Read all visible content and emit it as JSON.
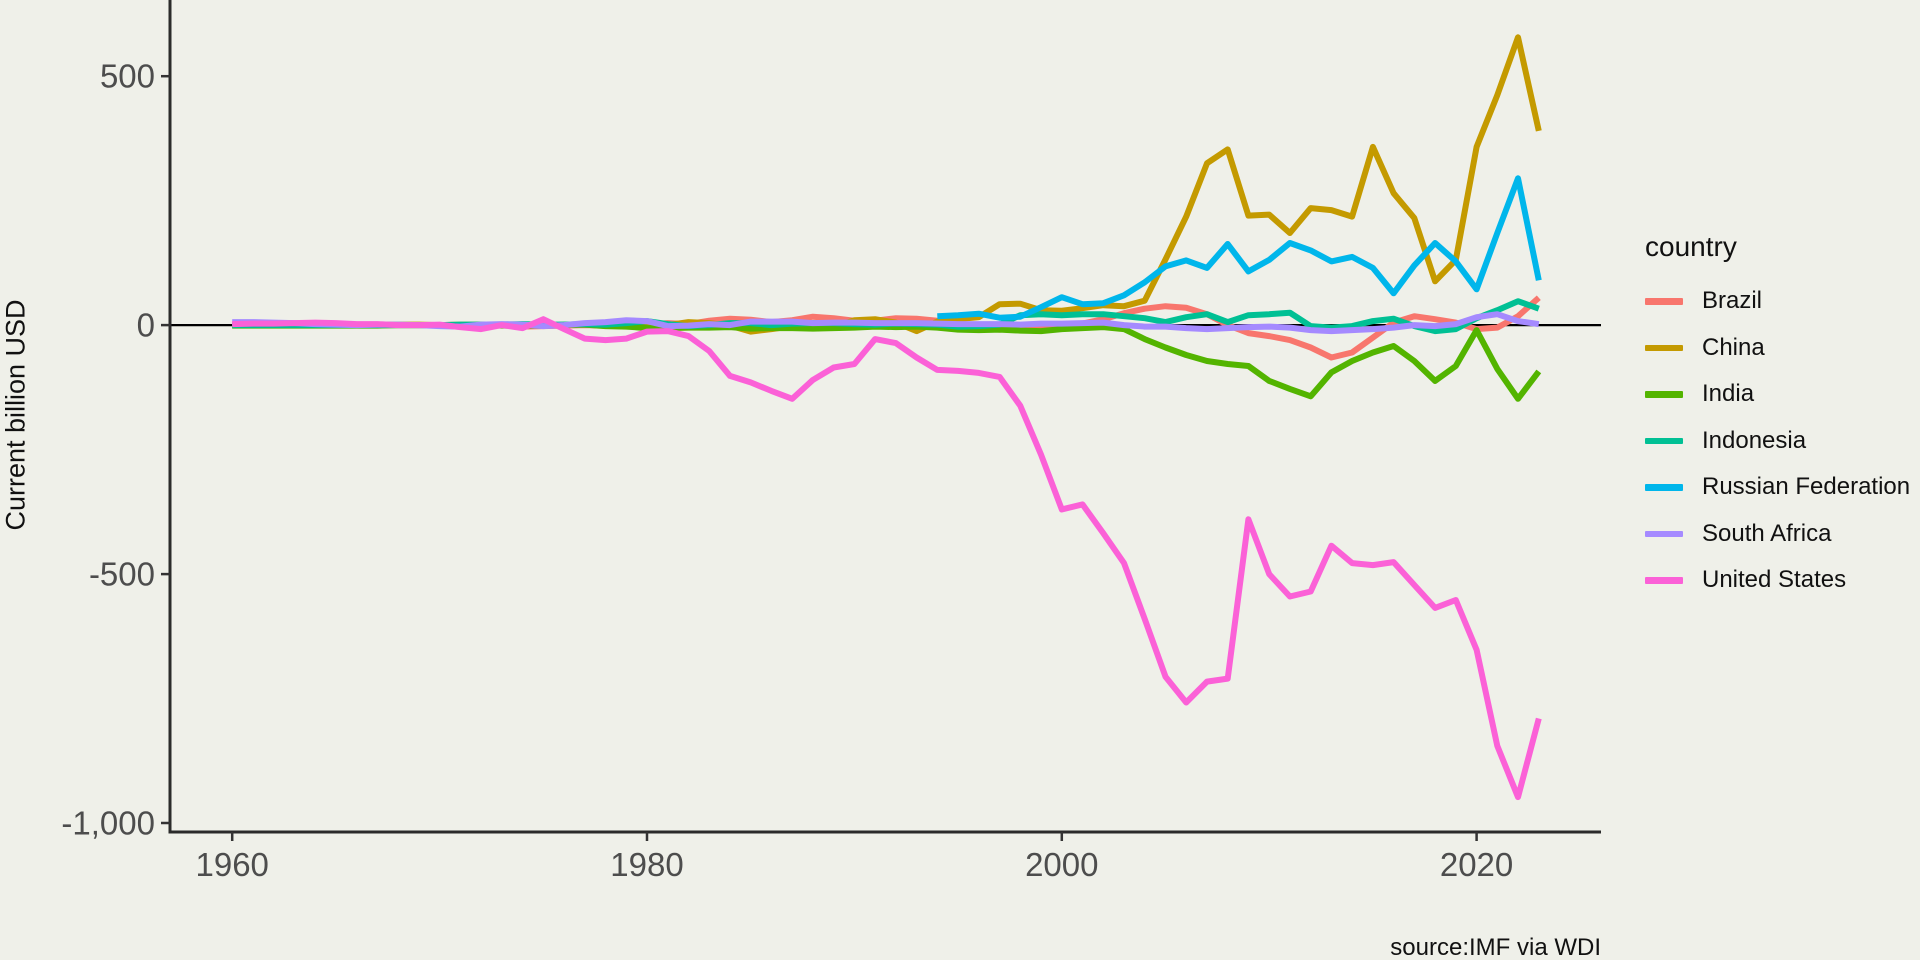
{
  "figure": {
    "y_axis_label": "Current billion USD",
    "source_note": "source:IMF via WDI",
    "background_color": "#EFF0E9",
    "axis_line_color": "#2b2b2b",
    "tick_color": "#333333",
    "tick_label_color": "#4d4d4d",
    "zero_line_color": "#000000"
  },
  "legend": {
    "title": "country",
    "items": [
      {
        "label": "Brazil",
        "color": "#F8766D"
      },
      {
        "label": "China",
        "color": "#C49A00"
      },
      {
        "label": "India",
        "color": "#53B400"
      },
      {
        "label": "Indonesia",
        "color": "#00C094"
      },
      {
        "label": "Russian Federation",
        "color": "#00B6EB"
      },
      {
        "label": "South Africa",
        "color": "#A58AFF"
      },
      {
        "label": "United States",
        "color": "#FB61D7"
      }
    ]
  },
  "chart_data": {
    "type": "line",
    "xlabel": "",
    "ylabel": "Current billion USD",
    "xlim": [
      1957,
      2026
    ],
    "ylim": [
      -1018,
      653
    ],
    "grid": false,
    "zero_line": true,
    "legend_position": "right",
    "x_ticks": [
      {
        "value": 1960,
        "label": "1960"
      },
      {
        "value": 1980,
        "label": "1980"
      },
      {
        "value": 2000,
        "label": "2000"
      },
      {
        "value": 2020,
        "label": "2020"
      }
    ],
    "y_ticks": [
      {
        "value": 500,
        "label": "500"
      },
      {
        "value": 0,
        "label": "0"
      },
      {
        "value": -500,
        "label": "-500"
      },
      {
        "value": -1000,
        "label": "-1,000"
      }
    ],
    "series": [
      {
        "name": "Brazil",
        "color": "#F8766D",
        "start_year": 1960,
        "values": [
          0,
          0,
          0,
          0,
          0,
          1,
          0,
          0,
          0,
          0,
          0,
          0,
          0,
          0,
          -3,
          -2,
          -1,
          0,
          -1,
          -2,
          1,
          4,
          2,
          9,
          13,
          11,
          6,
          10,
          17,
          14,
          9,
          9,
          14,
          13,
          9,
          -4,
          -6,
          -9,
          -7,
          -1,
          -1,
          3,
          12,
          24,
          33,
          38,
          35,
          22,
          0,
          -16,
          -22,
          -30,
          -45,
          -65,
          -55,
          -25,
          5,
          18,
          12,
          5,
          -8,
          -5,
          18,
          55
        ]
      },
      {
        "name": "China",
        "color": "#C49A00",
        "start_year": 1960,
        "values": [
          0,
          1,
          1,
          1,
          1,
          1,
          1,
          1,
          1,
          1,
          0,
          1,
          1,
          0,
          -1,
          1,
          0,
          1,
          -1,
          -2,
          -2,
          0,
          6,
          4,
          -1,
          -13,
          -8,
          -2,
          -5,
          -4,
          10,
          12,
          5,
          -12,
          7,
          12,
          16,
          42,
          43,
          30,
          29,
          34,
          40,
          38,
          49,
          132,
          218,
          325,
          353,
          220,
          222,
          185,
          235,
          231,
          218,
          358,
          265,
          215,
          88,
          131,
          358,
          462,
          578,
          390
        ]
      },
      {
        "name": "India",
        "color": "#53B400",
        "start_year": 1960,
        "values": [
          -1,
          -1,
          -1,
          -1,
          -1,
          -1,
          -1,
          -1,
          0,
          0,
          0,
          -1,
          0,
          -1,
          -1,
          -1,
          1,
          1,
          -2,
          -3,
          -6,
          -6,
          -5,
          -5,
          -4,
          -7,
          -6,
          -6,
          -7,
          -6,
          -5,
          -3,
          -4,
          -3,
          -5,
          -9,
          -10,
          -9,
          -11,
          -12,
          -8,
          -6,
          -4,
          -8,
          -28,
          -45,
          -60,
          -72,
          -78,
          -82,
          -112,
          -128,
          -143,
          -95,
          -72,
          -55,
          -42,
          -72,
          -112,
          -82,
          -10,
          -88,
          -148,
          -93
        ]
      },
      {
        "name": "Indonesia",
        "color": "#00C094",
        "start_year": 1960,
        "values": [
          0,
          0,
          0,
          0,
          0,
          0,
          0,
          0,
          0,
          0,
          0,
          1,
          1,
          1,
          2,
          1,
          1,
          2,
          1,
          4,
          8,
          2,
          -2,
          0,
          4,
          4,
          0,
          3,
          4,
          4,
          2,
          1,
          3,
          2,
          1,
          -3,
          -2,
          1,
          20,
          22,
          20,
          22,
          22,
          18,
          14,
          6,
          16,
          22,
          6,
          20,
          22,
          25,
          -2,
          -5,
          -2,
          8,
          13,
          -2,
          -12,
          -8,
          14,
          30,
          48,
          33
        ]
      },
      {
        "name": "Russian Federation",
        "color": "#00B6EB",
        "start_year": 1994,
        "values": [
          18,
          20,
          23,
          15,
          17,
          36,
          56,
          42,
          44,
          60,
          86,
          118,
          130,
          115,
          163,
          108,
          131,
          165,
          150,
          128,
          137,
          115,
          64,
          120,
          165,
          128,
          72,
          185,
          295,
          90
        ]
      },
      {
        "name": "South Africa",
        "color": "#A58AFF",
        "start_year": 1960,
        "values": [
          6,
          6,
          5,
          4,
          2,
          1,
          0,
          1,
          1,
          0,
          -2,
          -3,
          1,
          2,
          1,
          -2,
          0,
          4,
          6,
          10,
          8,
          -2,
          -1,
          2,
          0,
          7,
          7,
          7,
          4,
          5,
          5,
          4,
          4,
          4,
          3,
          2,
          2,
          2,
          1,
          3,
          3,
          4,
          5,
          0,
          -3,
          -3,
          -6,
          -8,
          -6,
          -4,
          -3,
          -5,
          -10,
          -12,
          -10,
          -8,
          -5,
          0,
          -2,
          2,
          16,
          22,
          8,
          2
        ]
      },
      {
        "name": "United States",
        "color": "#FB61D7",
        "start_year": 1960,
        "values": [
          2,
          3,
          3,
          4,
          5,
          4,
          2,
          2,
          0,
          0,
          1,
          -4,
          -8,
          0,
          -6,
          12,
          -8,
          -27,
          -30,
          -27,
          -13,
          -12,
          -22,
          -52,
          -102,
          -115,
          -132,
          -148,
          -110,
          -85,
          -78,
          -28,
          -36,
          -65,
          -90,
          -92,
          -96,
          -104,
          -162,
          -260,
          -370,
          -360,
          -418,
          -478,
          -590,
          -706,
          -758,
          -716,
          -710,
          -390,
          -500,
          -545,
          -535,
          -443,
          -478,
          -482,
          -476,
          -522,
          -568,
          -552,
          -652,
          -845,
          -948,
          -790
        ]
      }
    ]
  }
}
